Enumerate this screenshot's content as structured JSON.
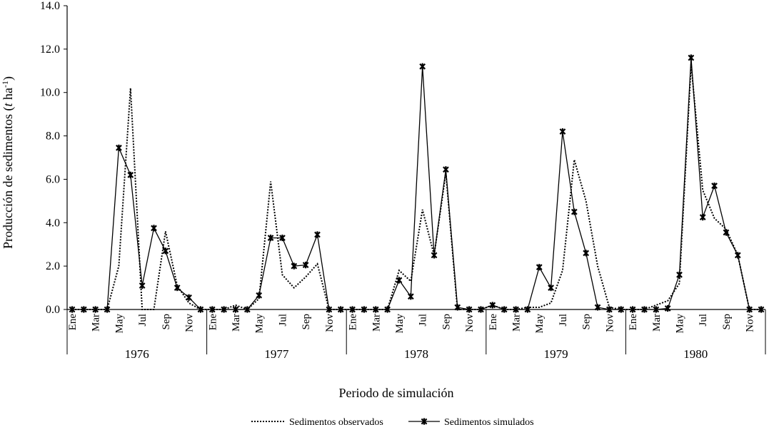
{
  "chart_data": {
    "type": "line",
    "title": "",
    "ylabel_prefix": "Producción de sedimentos (",
    "ylabel_italic": "t",
    "ylabel_unit": " ha",
    "ylabel_sup": "-1",
    "ylabel_suffix": ")",
    "xlabel": "Periodo de simulación",
    "ylim": [
      0,
      14
    ],
    "yticks": [
      "0.0",
      "2.0",
      "4.0",
      "6.0",
      "8.0",
      "10.0",
      "12.0",
      "14.0"
    ],
    "ytick_values": [
      0,
      2,
      4,
      6,
      8,
      10,
      12,
      14
    ],
    "grid": false,
    "legend_position": "bottom",
    "month_labels": [
      "Ene",
      "Mar",
      "May",
      "Jul",
      "Sep",
      "Nov"
    ],
    "month_label_indices": [
      0,
      2,
      4,
      6,
      8,
      10
    ],
    "years": [
      "1976",
      "1977",
      "1978",
      "1979",
      "1980"
    ],
    "series": [
      {
        "name": "Sedimentos observados",
        "style": "dotted",
        "values": [
          0,
          0,
          0,
          0,
          2.0,
          10.2,
          0,
          0,
          3.6,
          1.1,
          0.3,
          0,
          0,
          0,
          0.2,
          0,
          0.5,
          5.9,
          1.6,
          1.0,
          1.5,
          2.1,
          0,
          0,
          0,
          0,
          0,
          0,
          1.8,
          1.3,
          4.6,
          2.5,
          6.3,
          0,
          0,
          0,
          0.2,
          0,
          0,
          0.1,
          0.1,
          0.3,
          1.8,
          6.9,
          5.0,
          2.0,
          0.1,
          0,
          0,
          0,
          0.2,
          0.4,
          1.2,
          11.3,
          5.5,
          4.2,
          3.7,
          2.5,
          0,
          0
        ]
      },
      {
        "name": "Sedimentos simulados",
        "style": "solid-star",
        "values": [
          0,
          0,
          0,
          0,
          7.45,
          6.2,
          1.1,
          3.75,
          2.7,
          1.0,
          0.55,
          0,
          0,
          0,
          0,
          0,
          0.65,
          3.3,
          3.3,
          2.0,
          2.05,
          3.45,
          0,
          0,
          0,
          0,
          0,
          0,
          1.35,
          0.6,
          11.2,
          2.5,
          6.45,
          0.1,
          0,
          0,
          0.2,
          0,
          0,
          0,
          1.95,
          1.0,
          8.2,
          4.5,
          2.6,
          0.1,
          0,
          0,
          0,
          0,
          0,
          0.05,
          1.6,
          11.6,
          4.25,
          5.7,
          3.55,
          2.5,
          0,
          0
        ]
      }
    ],
    "series_colors": {
      "observed": "#000000",
      "simulated": "#000000"
    }
  }
}
